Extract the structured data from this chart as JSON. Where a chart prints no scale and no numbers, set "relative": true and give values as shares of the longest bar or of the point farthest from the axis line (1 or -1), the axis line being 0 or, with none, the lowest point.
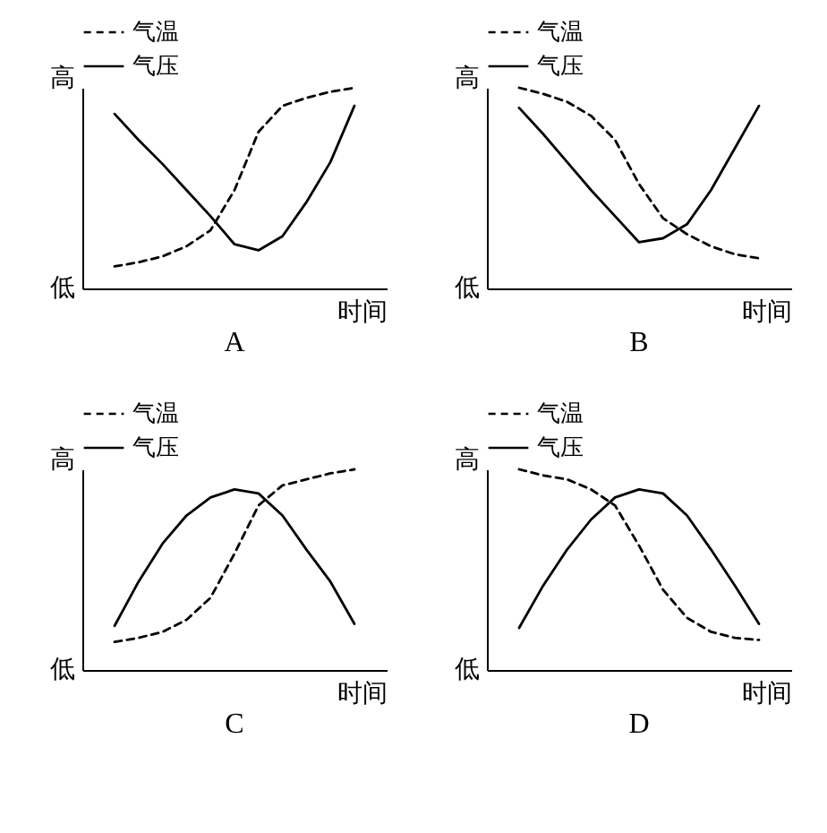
{
  "chart_data": [
    {
      "type": "line",
      "title": "A",
      "xlabel": "时间",
      "annotations": [
        "高",
        "低"
      ],
      "relative": true,
      "legend": "top",
      "categories": [
        null,
        null,
        null,
        null,
        null,
        null,
        null,
        null,
        null,
        null,
        null
      ],
      "series": [
        {
          "name": "气温",
          "color": "#000000",
          "line_style": "dashed",
          "values": [
            0.11,
            0.13,
            0.16,
            0.21,
            0.29,
            0.49,
            0.78,
            0.91,
            0.95,
            0.98,
            1
          ]
        },
        {
          "name": "气压",
          "color": "#000000",
          "line_style": "solid",
          "values": [
            0.87,
            0.74,
            0.62,
            0.49,
            0.36,
            0.22,
            0.19,
            0.26,
            0.43,
            0.63,
            0.91
          ]
        }
      ]
    },
    {
      "type": "line",
      "title": "B",
      "xlabel": "时间",
      "annotations": [
        "高",
        "低"
      ],
      "relative": true,
      "legend": "top",
      "categories": [
        null,
        null,
        null,
        null,
        null,
        null,
        null,
        null,
        null,
        null,
        null
      ],
      "series": [
        {
          "name": "气温",
          "color": "#000000",
          "line_style": "dashed",
          "values": [
            1,
            0.97,
            0.93,
            0.86,
            0.74,
            0.52,
            0.35,
            0.27,
            0.21,
            0.17,
            0.15
          ]
        },
        {
          "name": "气压",
          "color": "#000000",
          "line_style": "solid",
          "values": [
            0.9,
            0.77,
            0.63,
            0.49,
            0.36,
            0.23,
            0.25,
            0.32,
            0.49,
            0.7,
            0.91
          ]
        }
      ]
    },
    {
      "type": "line",
      "title": "C",
      "xlabel": "时间",
      "annotations": [
        "高",
        "低"
      ],
      "relative": true,
      "legend": "top",
      "categories": [
        null,
        null,
        null,
        null,
        null,
        null,
        null,
        null,
        null,
        null,
        null
      ],
      "series": [
        {
          "name": "气温",
          "color": "#000000",
          "line_style": "dashed",
          "values": [
            0.14,
            0.16,
            0.19,
            0.25,
            0.36,
            0.58,
            0.82,
            0.92,
            0.95,
            0.98,
            1
          ]
        },
        {
          "name": "气压",
          "color": "#000000",
          "line_style": "solid",
          "values": [
            0.22,
            0.44,
            0.63,
            0.77,
            0.86,
            0.9,
            0.88,
            0.77,
            0.6,
            0.44,
            0.23
          ]
        }
      ]
    },
    {
      "type": "line",
      "title": "D",
      "xlabel": "时间",
      "annotations": [
        "高",
        "低"
      ],
      "relative": true,
      "legend": "top",
      "categories": [
        null,
        null,
        null,
        null,
        null,
        null,
        null,
        null,
        null,
        null,
        null
      ],
      "series": [
        {
          "name": "气温",
          "color": "#000000",
          "line_style": "dashed",
          "values": [
            1,
            0.97,
            0.95,
            0.9,
            0.82,
            0.62,
            0.4,
            0.26,
            0.19,
            0.16,
            0.15
          ]
        },
        {
          "name": "气压",
          "color": "#000000",
          "line_style": "solid",
          "values": [
            0.21,
            0.42,
            0.6,
            0.75,
            0.86,
            0.9,
            0.88,
            0.77,
            0.6,
            0.42,
            0.23
          ]
        }
      ]
    }
  ]
}
